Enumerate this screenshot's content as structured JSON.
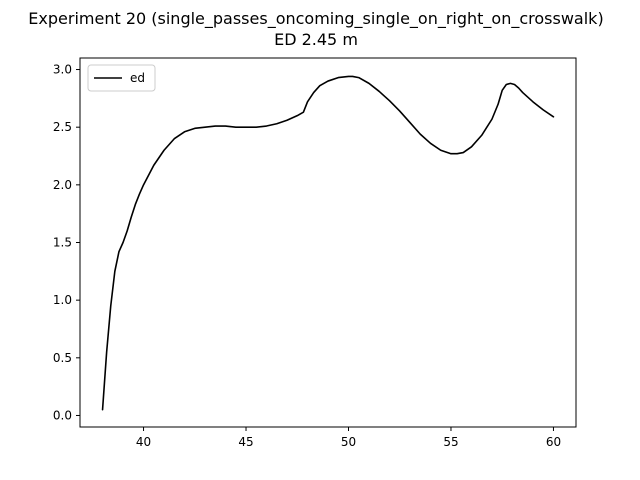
{
  "chart_data": {
    "type": "line",
    "title": "Experiment 20 (single_passes_oncoming_single_on_right_on_crosswalk)",
    "subtitle": "ED 2.45 m",
    "xlabel": "",
    "ylabel": "",
    "xlim": [
      36.9,
      61.1
    ],
    "ylim": [
      -0.1,
      3.1
    ],
    "xticks": [
      40,
      45,
      50,
      55,
      60
    ],
    "yticks": [
      0.0,
      0.5,
      1.0,
      1.5,
      2.0,
      2.5,
      3.0
    ],
    "xtick_labels": [
      "40",
      "45",
      "50",
      "55",
      "60"
    ],
    "ytick_labels": [
      "0.0",
      "0.5",
      "1.0",
      "1.5",
      "2.0",
      "2.5",
      "3.0"
    ],
    "grid": false,
    "legend_position": "top-left",
    "series": [
      {
        "name": "ed",
        "color": "#000000",
        "x": [
          38.0,
          38.2,
          38.4,
          38.6,
          38.8,
          39.0,
          39.2,
          39.4,
          39.6,
          39.8,
          40.0,
          40.5,
          41.0,
          41.5,
          42.0,
          42.5,
          43.0,
          43.5,
          44.0,
          44.5,
          45.0,
          45.5,
          46.0,
          46.5,
          47.0,
          47.5,
          47.8,
          48.0,
          48.3,
          48.6,
          49.0,
          49.5,
          50.0,
          50.2,
          50.5,
          51.0,
          51.5,
          52.0,
          52.5,
          53.0,
          53.5,
          54.0,
          54.5,
          55.0,
          55.3,
          55.6,
          56.0,
          56.5,
          57.0,
          57.3,
          57.5,
          57.7,
          57.9,
          58.1,
          58.3,
          58.5,
          59.0,
          59.5,
          60.0
        ],
        "y": [
          0.05,
          0.55,
          0.95,
          1.25,
          1.42,
          1.5,
          1.6,
          1.72,
          1.83,
          1.92,
          2.0,
          2.17,
          2.3,
          2.4,
          2.46,
          2.49,
          2.5,
          2.51,
          2.51,
          2.5,
          2.5,
          2.5,
          2.51,
          2.53,
          2.56,
          2.6,
          2.63,
          2.72,
          2.8,
          2.86,
          2.9,
          2.93,
          2.94,
          2.94,
          2.93,
          2.88,
          2.81,
          2.73,
          2.64,
          2.54,
          2.44,
          2.36,
          2.3,
          2.27,
          2.27,
          2.28,
          2.33,
          2.43,
          2.57,
          2.7,
          2.82,
          2.87,
          2.88,
          2.87,
          2.84,
          2.8,
          2.72,
          2.65,
          2.59
        ]
      }
    ]
  }
}
